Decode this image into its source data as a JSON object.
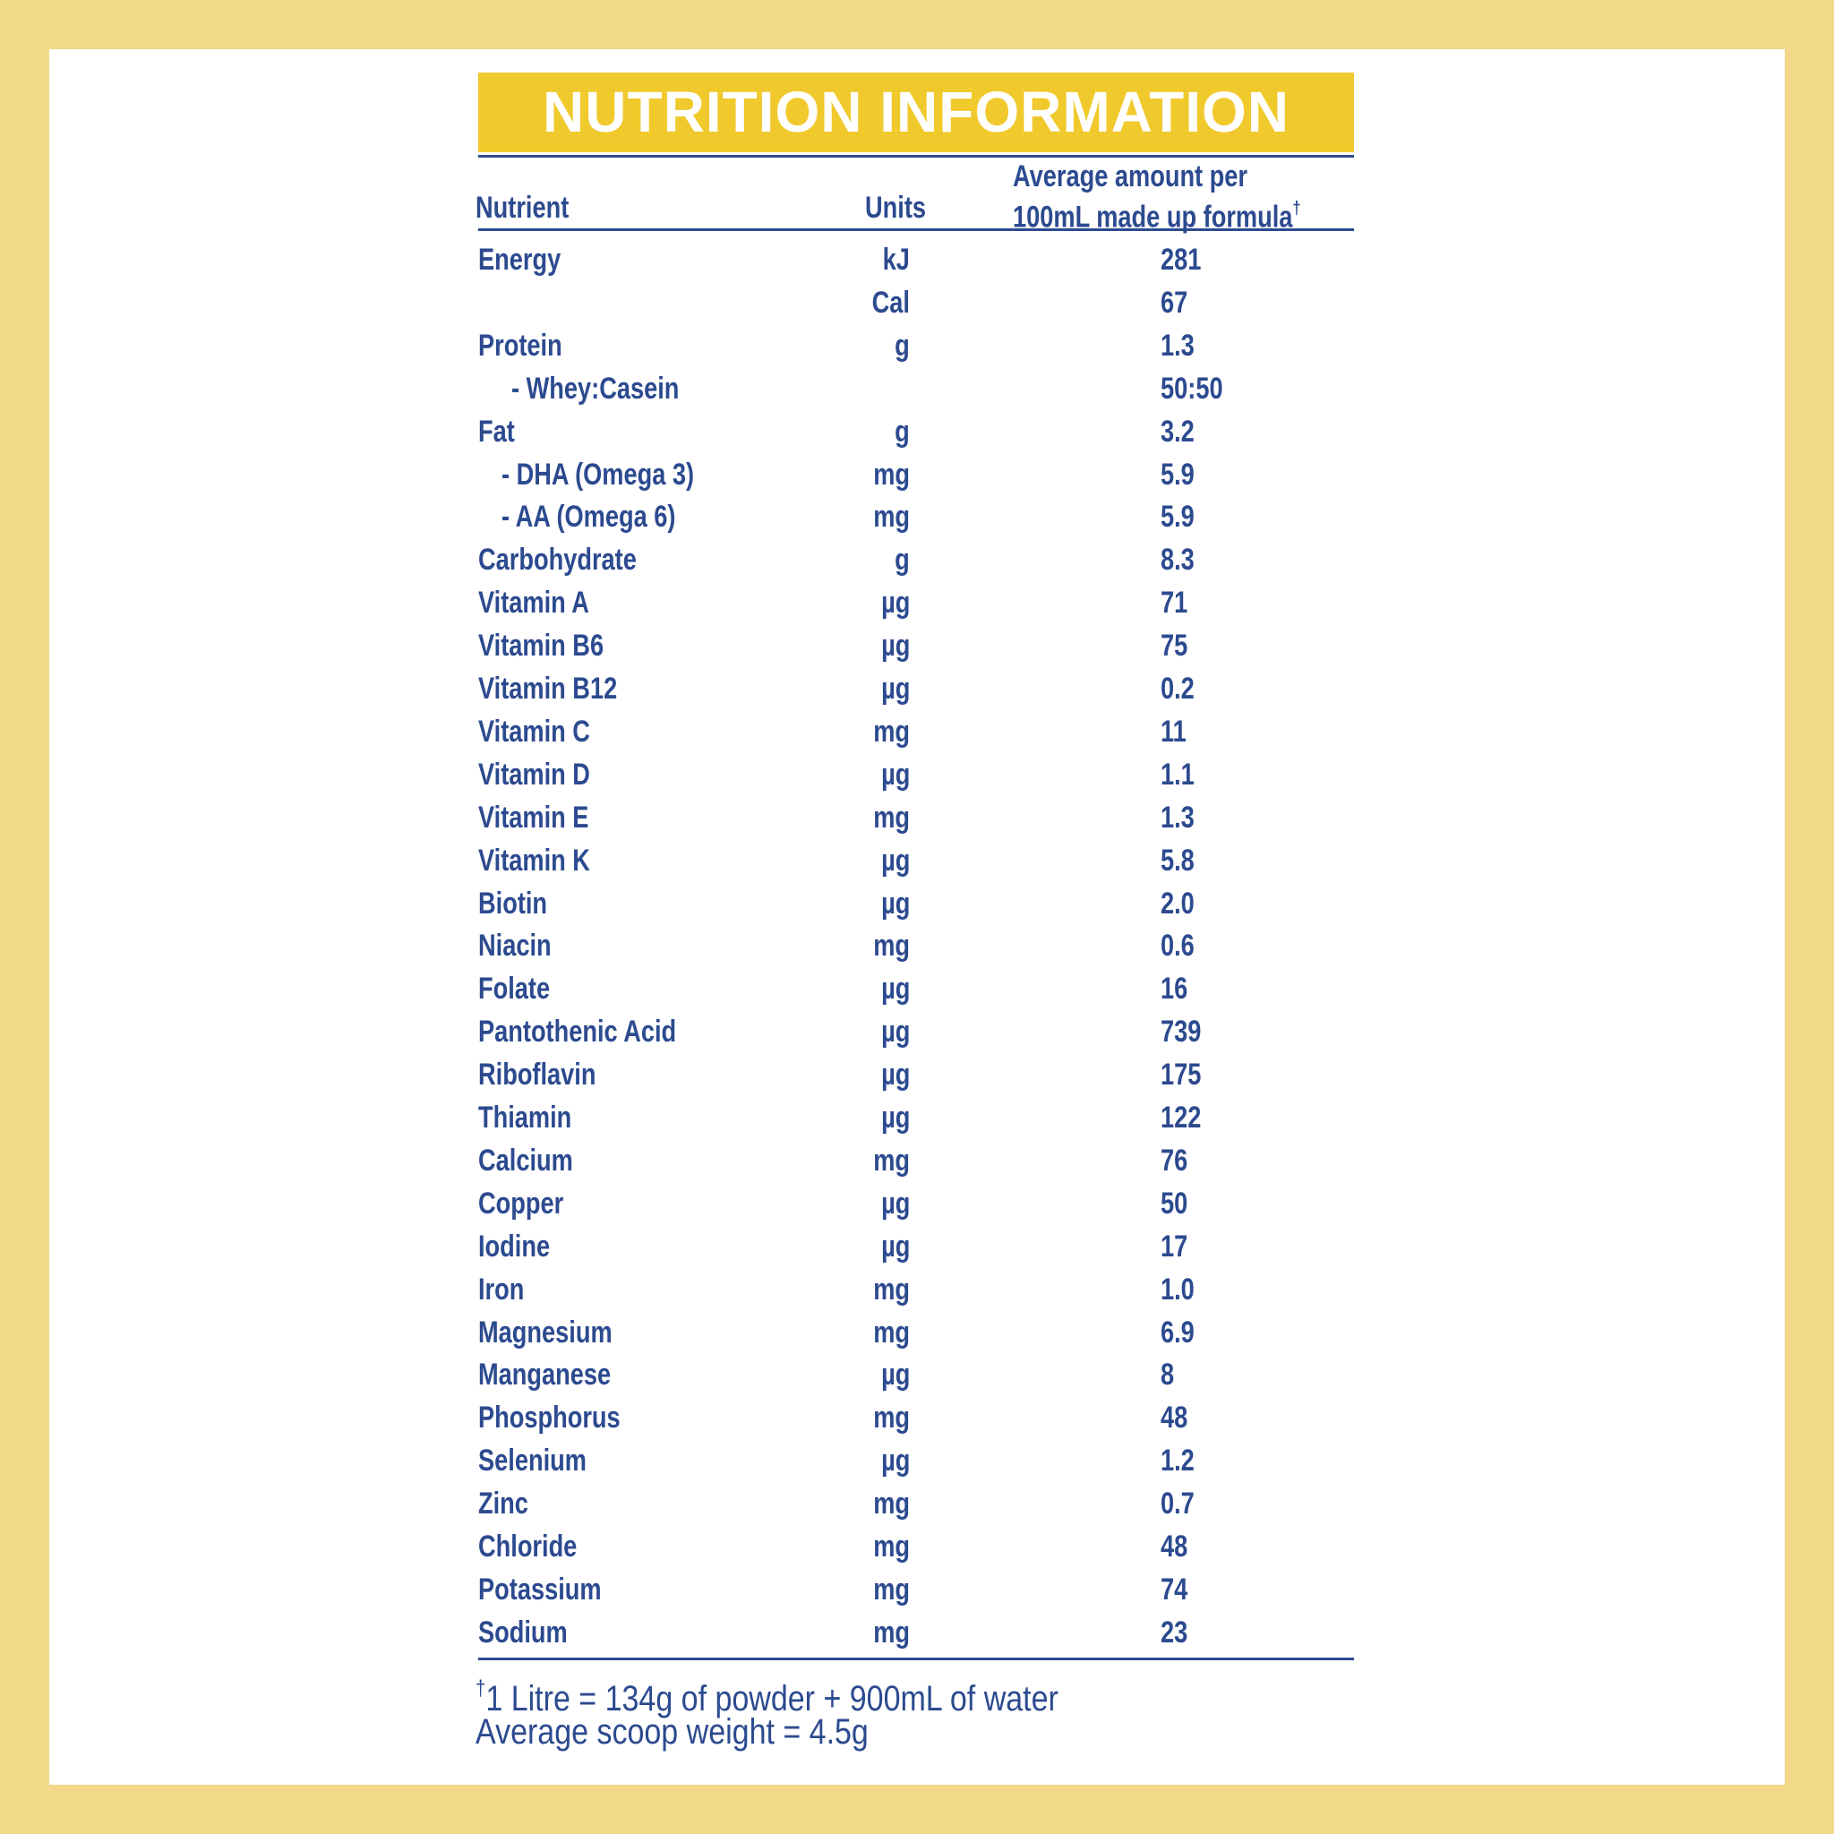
{
  "header": {
    "title": "NUTRITION INFORMATION",
    "nutrient": "Nutrient",
    "units": "Units",
    "amount_lines": [
      "Average amount per",
      "100mL made up formula"
    ],
    "amount_mark": "†"
  },
  "table": {
    "rows": [
      [
        "Energy",
        "kJ",
        "281"
      ],
      [
        null,
        "Cal",
        "67"
      ],
      [
        "Protein",
        "g",
        "1.3"
      ],
      [
        "- Whey:Casein",
        null,
        "50:50"
      ],
      [
        "Fat",
        "g",
        "3.2"
      ],
      [
        "- DHA (Omega 3)",
        "mg",
        "5.9"
      ],
      [
        "- AA (Omega 6)",
        "mg",
        "5.9"
      ],
      [
        "Carbohydrate",
        "g",
        "8.3"
      ],
      [
        "Vitamin A",
        "µg",
        "71"
      ],
      [
        "Vitamin B6",
        "µg",
        "75"
      ],
      [
        "Vitamin B12",
        "µg",
        "0.2"
      ],
      [
        "Vitamin C",
        "mg",
        "11"
      ],
      [
        "Vitamin D",
        "µg",
        "1.1"
      ],
      [
        "Vitamin E",
        "mg",
        "1.3"
      ],
      [
        "Vitamin K",
        "µg",
        "5.8"
      ],
      [
        "Biotin",
        "µg",
        "2.0"
      ],
      [
        "Niacin",
        "mg",
        "0.6"
      ],
      [
        "Folate",
        "µg",
        "16"
      ],
      [
        "Pantothenic Acid",
        "µg",
        "739"
      ],
      [
        "Riboflavin",
        "µg",
        "175"
      ],
      [
        "Thiamin",
        "µg",
        "122"
      ],
      [
        "Calcium",
        "mg",
        "76"
      ],
      [
        "Copper",
        "µg",
        "50"
      ],
      [
        "Iodine",
        "µg",
        "17"
      ],
      [
        "Iron",
        "mg",
        "1.0"
      ],
      [
        "Magnesium",
        "mg",
        "6.9"
      ],
      [
        "Manganese",
        "µg",
        "8"
      ],
      [
        "Phosphorus",
        "mg",
        "48"
      ],
      [
        "Selenium",
        "µg",
        "1.2"
      ],
      [
        "Zinc",
        "mg",
        "0.7"
      ],
      [
        "Chloride",
        "mg",
        "48"
      ],
      [
        "Potassium",
        "mg",
        "74"
      ],
      [
        "Sodium",
        "mg",
        "23"
      ]
    ]
  },
  "footnote": {
    "mark": "†",
    "lines": [
      "1 Litre = 134g of powder + 900mL of water",
      "Average scoop weight = 4.5g"
    ]
  }
}
